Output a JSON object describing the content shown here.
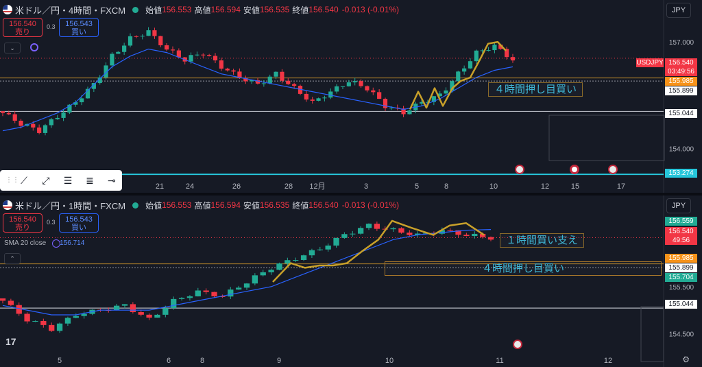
{
  "top": {
    "symbol": "米ドル／円・4時間・FXCM",
    "ohlc_open_label": "始値",
    "ohlc_open": "156.553",
    "ohlc_high_label": "高値",
    "ohlc_high": "156.594",
    "ohlc_low_label": "安値",
    "ohlc_low": "156.535",
    "ohlc_close_label": "終値",
    "ohlc_close": "156.540",
    "change": "-0.013 (-0.01%)",
    "sell_price": "156.540",
    "sell_label": "売り",
    "spread": "0.3",
    "buy_price": "156.543",
    "buy_label": "買い",
    "currency": "JPY",
    "annotation": "４時間押し目買い",
    "price_tags": [
      {
        "label": "USDJPY",
        "price": "156.540",
        "timer": "03:49:56",
        "color": "#f23645"
      },
      {
        "price": "155.985",
        "color": "#f7931a"
      },
      {
        "price": "155.899",
        "color": "#ffffff"
      },
      {
        "price": "155.044",
        "color": "#ffffff"
      },
      {
        "price": "153.274",
        "color": "#26c6da"
      }
    ],
    "axis_labels": [
      "157.000",
      "154.000"
    ],
    "x_labels": [
      "21",
      "24",
      "26",
      "28",
      "12月",
      "3",
      "5",
      "8",
      "10",
      "12",
      "15",
      "17"
    ]
  },
  "bottom": {
    "symbol": "米ドル／円・1時間・FXCM",
    "ohlc_open_label": "始値",
    "ohlc_open": "156.553",
    "ohlc_high_label": "高値",
    "ohlc_high": "156.594",
    "ohlc_low_label": "安値",
    "ohlc_low": "156.535",
    "ohlc_close_label": "終値",
    "ohlc_close": "156.540",
    "change": "-0.013 (-0.01%)",
    "sell_price": "156.540",
    "sell_label": "売り",
    "spread": "0.3",
    "buy_price": "156.543",
    "buy_label": "買い",
    "currency": "JPY",
    "sma_label": "SMA 20 close",
    "sma_value": "156.714",
    "annotation_support": "１時間買い支え",
    "annotation_dip": "４時間押し目買い",
    "price_tags": [
      {
        "price": "156.559",
        "color": "#22ab94"
      },
      {
        "price": "156.540",
        "timer": "49:56",
        "color": "#f23645"
      },
      {
        "price": "155.985",
        "color": "#f7931a"
      },
      {
        "price": "155.899",
        "color": "#ffffff"
      },
      {
        "price": "155.704",
        "color": "#22ab94"
      },
      {
        "price": "155.044",
        "color": "#ffffff"
      }
    ],
    "axis_labels": [
      "155.500",
      "154.500"
    ],
    "x_labels": [
      "5",
      "6",
      "8",
      "9",
      "10",
      "11",
      "12"
    ]
  },
  "chart_data": [
    {
      "type": "candlestick",
      "title": "米ドル／円・4時間・FXCM",
      "x_labels": [
        "21",
        "24",
        "26",
        "28",
        "12月",
        "3",
        "5",
        "8",
        "10",
        "12",
        "15",
        "17"
      ],
      "ylim": [
        153.2,
        157.6
      ],
      "close_series": [
        155.0,
        154.7,
        154.5,
        154.9,
        155.3,
        155.8,
        156.6,
        157.1,
        157.3,
        156.8,
        156.5,
        156.7,
        156.3,
        156.0,
        155.8,
        156.1,
        155.7,
        155.3,
        155.6,
        155.9,
        155.7,
        155.2,
        155.0,
        155.3,
        155.5,
        156.1,
        156.7,
        156.9,
        156.5
      ],
      "sma_series": [
        154.5,
        154.6,
        154.8,
        155.0,
        155.3,
        155.8,
        156.3,
        156.6,
        156.8,
        156.7,
        156.5,
        156.3,
        156.1,
        156.0,
        155.9,
        155.8,
        155.7,
        155.6,
        155.5,
        155.4,
        155.3,
        155.2,
        155.1,
        155.2,
        155.4,
        155.7,
        156.0,
        156.2,
        156.3
      ],
      "horizontal_levels": [
        155.985,
        155.899,
        155.044,
        153.274
      ],
      "last_price": 156.54,
      "grid": false
    },
    {
      "type": "candlestick",
      "title": "米ドル／円・1時間・FXCM",
      "x_labels": [
        "5",
        "6",
        "8",
        "9",
        "10",
        "11",
        "12"
      ],
      "ylim": [
        154.2,
        157.0
      ],
      "close_series": [
        155.2,
        154.8,
        154.6,
        154.9,
        155.0,
        155.1,
        154.8,
        155.2,
        155.4,
        155.3,
        155.6,
        155.9,
        156.1,
        156.3,
        156.6,
        156.8,
        156.7,
        156.6,
        156.7,
        156.6,
        156.54
      ],
      "sma_series": [
        155.1,
        155.0,
        154.9,
        154.9,
        155.0,
        155.0,
        155.0,
        155.1,
        155.2,
        155.3,
        155.4,
        155.5,
        155.7,
        155.9,
        156.1,
        156.3,
        156.5,
        156.6,
        156.65,
        156.7,
        156.714
      ],
      "horizontal_levels": [
        155.985,
        155.899,
        155.044
      ],
      "last_price": 156.54,
      "grid": false
    }
  ]
}
